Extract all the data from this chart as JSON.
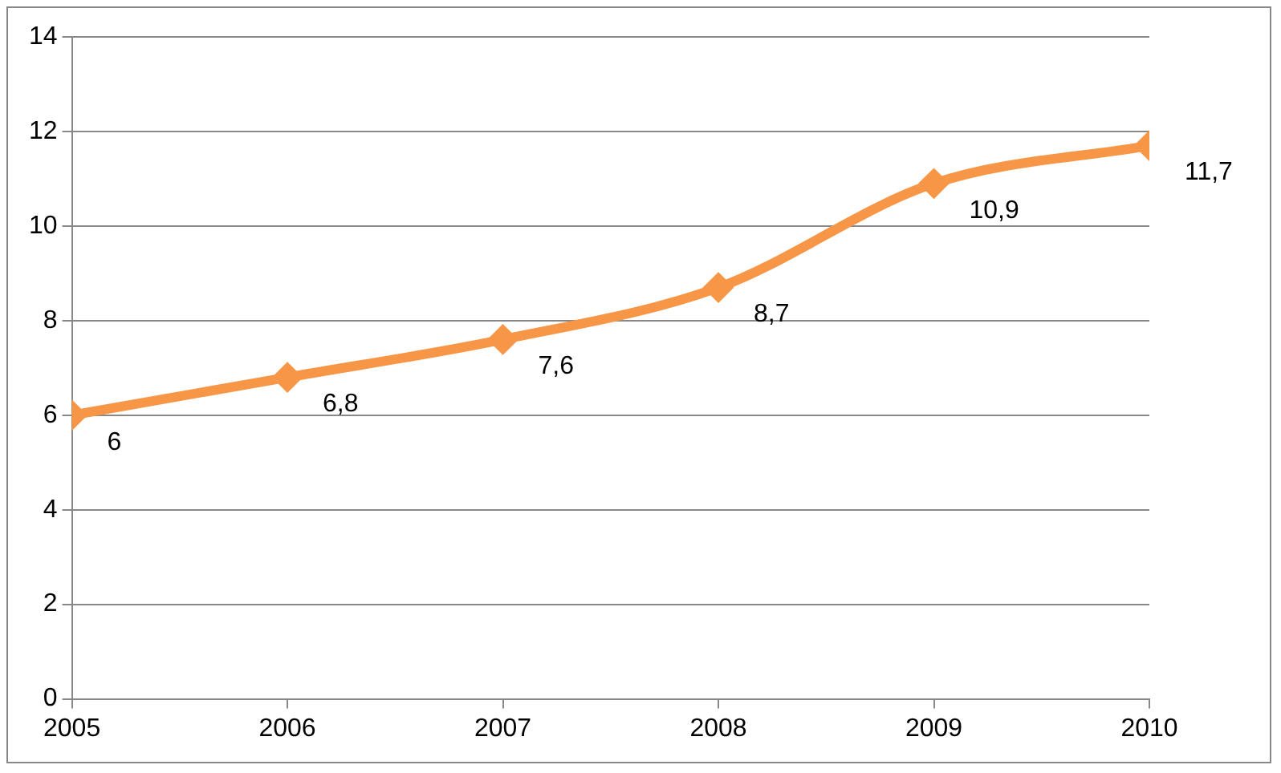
{
  "chart_data": {
    "type": "line",
    "x": [
      2005,
      2006,
      2007,
      2008,
      2009,
      2010
    ],
    "series": [
      {
        "color": "#f79646",
        "values": [
          6,
          6.8,
          7.6,
          8.7,
          10.9,
          11.7
        ],
        "value_labels": [
          "6",
          "6,8",
          "7,6",
          "8,7",
          "10,9",
          "11,7"
        ]
      }
    ],
    "xlim": [
      2005,
      2010
    ],
    "xticks": [
      2005,
      2006,
      2007,
      2008,
      2009,
      2010
    ],
    "ylim": [
      0,
      14
    ],
    "yticks": [
      0,
      2,
      4,
      6,
      8,
      10,
      12,
      14
    ],
    "grid": "y",
    "legend": false,
    "marker": "diamond",
    "line_style": "solid"
  }
}
